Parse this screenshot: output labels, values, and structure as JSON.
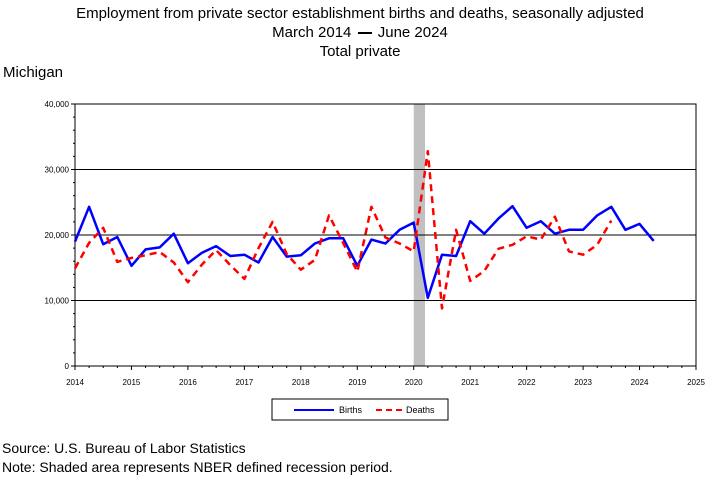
{
  "title": {
    "line1": "Employment from private sector establishment births and deaths, seasonally adjusted",
    "line2_start": "March 2014",
    "line2_end": "June 2024",
    "line3": "Total private"
  },
  "region": "Michigan",
  "source": "Source: U.S. Bureau of Labor Statistics",
  "note": "Note: Shaded area represents NBER defined recession period.",
  "colors": {
    "births": "#0000ff",
    "deaths": "#ff0000",
    "recession": "#c0c0c0"
  },
  "chart_data": {
    "type": "line",
    "x_axis": {
      "min": 2014,
      "max": 2025,
      "ticks": [
        2014,
        2015,
        2016,
        2017,
        2018,
        2019,
        2020,
        2021,
        2022,
        2023,
        2024,
        2025
      ]
    },
    "y_axis": {
      "min": 0,
      "max": 40000,
      "ticks": [
        0,
        10000,
        20000,
        30000,
        40000
      ],
      "tick_labels": [
        "0",
        "10,000",
        "20,000",
        "30,000",
        "40,000"
      ]
    },
    "grid": "horizontal",
    "legend_placement": "bottom-center",
    "recession": {
      "start": 2020.0,
      "end": 2020.2
    },
    "series": [
      {
        "name": "Births",
        "style": "solid",
        "x": [
          2014.0,
          2014.25,
          2014.5,
          2014.75,
          2015.0,
          2015.25,
          2015.5,
          2015.75,
          2016.0,
          2016.25,
          2016.5,
          2016.75,
          2017.0,
          2017.25,
          2017.5,
          2017.75,
          2018.0,
          2018.25,
          2018.5,
          2018.75,
          2019.0,
          2019.25,
          2019.5,
          2019.75,
          2020.0,
          2020.25,
          2020.5,
          2020.75,
          2021.0,
          2021.25,
          2021.5,
          2021.75,
          2022.0,
          2022.25,
          2022.5,
          2022.75,
          2023.0,
          2023.25,
          2023.5,
          2023.75,
          2024.0,
          2024.25
        ],
        "values": [
          19000,
          24300,
          18600,
          19700,
          15300,
          17800,
          18100,
          20200,
          15700,
          17300,
          18300,
          16800,
          17000,
          15800,
          19700,
          16700,
          16900,
          18700,
          19500,
          19500,
          15300,
          19300,
          18700,
          20800,
          21900,
          10400,
          17000,
          16800,
          22100,
          20200,
          22500,
          24400,
          21100,
          22100,
          20200,
          20800,
          20800,
          23000,
          24300,
          20800,
          21700,
          19100
        ]
      },
      {
        "name": "Deaths",
        "style": "dashed",
        "x": [
          2014.0,
          2014.25,
          2014.5,
          2014.75,
          2015.0,
          2015.25,
          2015.5,
          2015.75,
          2016.0,
          2016.25,
          2016.5,
          2016.75,
          2017.0,
          2017.25,
          2017.5,
          2017.75,
          2018.0,
          2018.25,
          2018.5,
          2018.75,
          2019.0,
          2019.25,
          2019.5,
          2019.75,
          2020.0,
          2020.25,
          2020.5,
          2020.75,
          2021.0,
          2021.25,
          2021.5,
          2021.75,
          2022.0,
          2022.25,
          2022.5,
          2022.75,
          2023.0,
          2023.25,
          2023.5
        ],
        "values": [
          14900,
          18800,
          21100,
          15900,
          16500,
          16900,
          17400,
          15800,
          12800,
          15500,
          17700,
          15400,
          13300,
          18000,
          22000,
          17100,
          14700,
          16200,
          23000,
          18800,
          14400,
          24300,
          19600,
          18700,
          17500,
          32800,
          8800,
          20800,
          13000,
          14500,
          17900,
          18500,
          19800,
          19300,
          22800,
          17500,
          17000,
          18500,
          22200
        ]
      }
    ]
  }
}
